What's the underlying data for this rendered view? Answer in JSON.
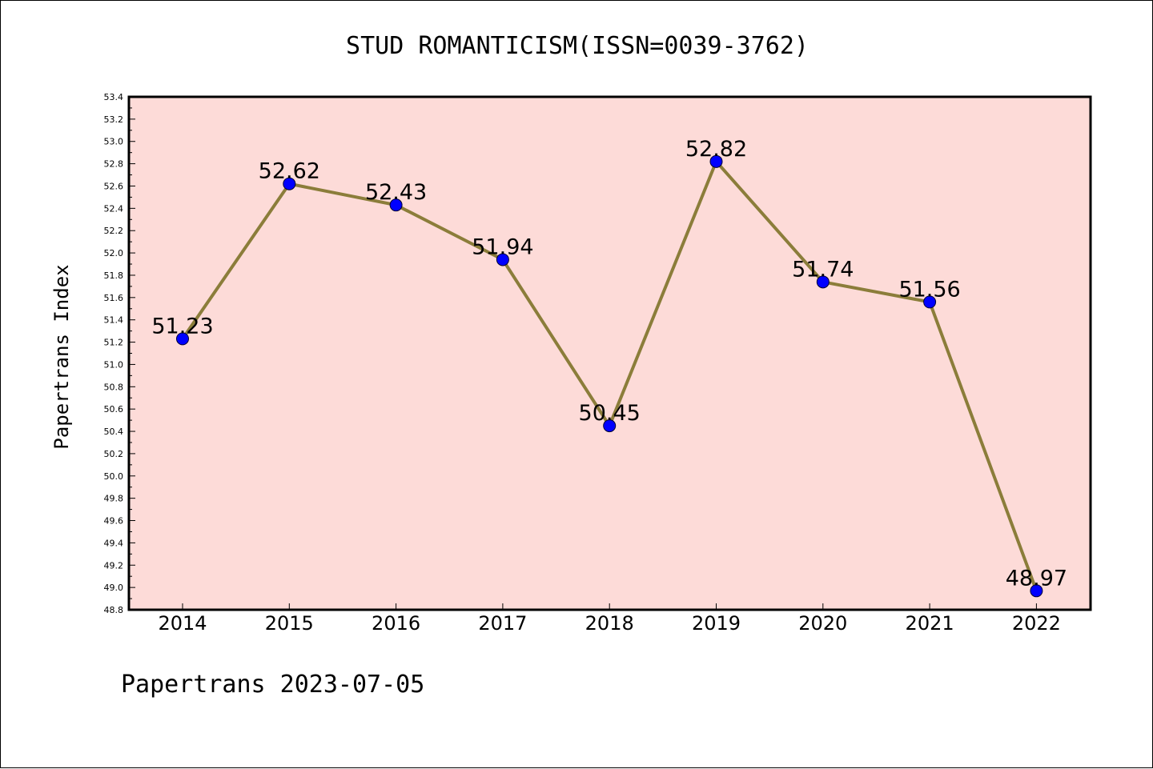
{
  "chart_data": {
    "type": "line",
    "title": "STUD ROMANTICISM(ISSN=0039-3762)",
    "ylabel": "Papertrans Index",
    "xlabel": "",
    "categories": [
      "2014",
      "2015",
      "2016",
      "2017",
      "2018",
      "2019",
      "2020",
      "2021",
      "2022"
    ],
    "series": [
      {
        "values": [
          51.23,
          52.62,
          52.43,
          51.94,
          50.45,
          52.82,
          51.74,
          51.56,
          48.97
        ]
      }
    ],
    "data_labels": [
      "51.23",
      "52.62",
      "52.43",
      "51.94",
      "50.45",
      "52.82",
      "51.74",
      "51.56",
      "48.97"
    ],
    "ylim": [
      48.8,
      53.4
    ],
    "yticks": [
      "48.8",
      "49.0",
      "49.2",
      "49.4",
      "49.6",
      "49.8",
      "50.0",
      "50.2",
      "50.4",
      "50.6",
      "50.8",
      "51.0",
      "51.2",
      "51.4",
      "51.6",
      "51.8",
      "52.0",
      "52.2",
      "52.4",
      "52.6",
      "52.8",
      "53.0",
      "53.2",
      "53.4"
    ],
    "grid": false,
    "legend": "none",
    "colors": {
      "plot_background": "#fddbd8",
      "line": "#8b7d3a",
      "marker": "#0000ff"
    }
  },
  "footer": "Papertrans 2023-07-05"
}
